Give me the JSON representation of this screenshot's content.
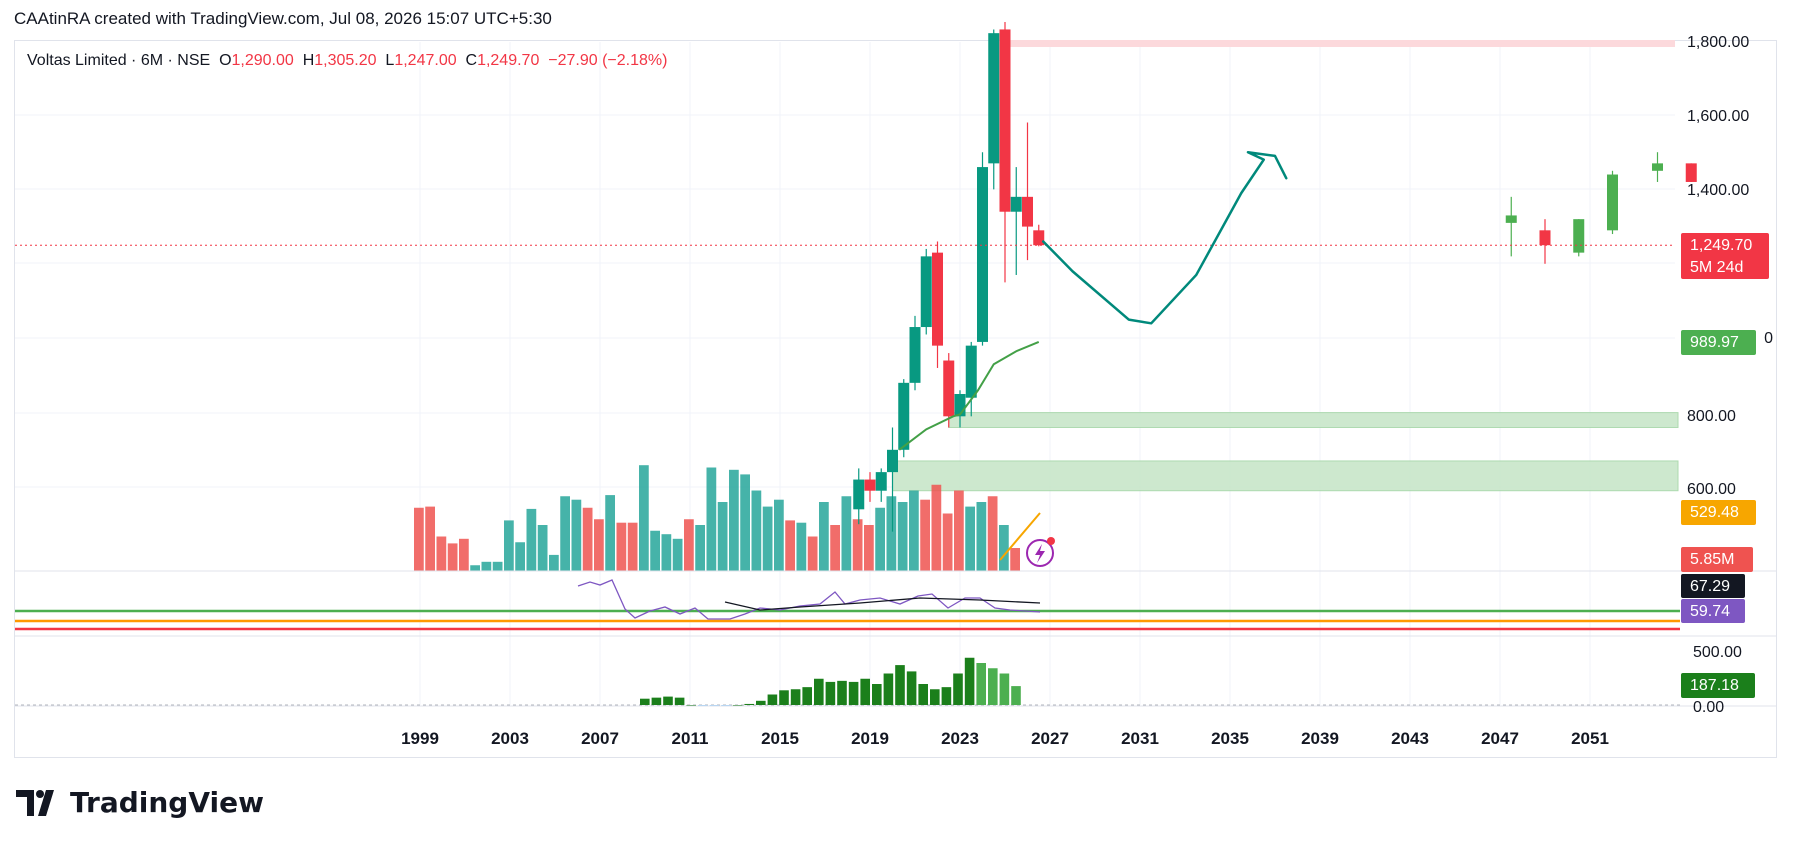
{
  "header": {
    "title": "CAAtinRA created with TradingView.com, Jul 08, 2026 15:07 UTC+5:30"
  },
  "legend": {
    "symbol": "Voltas Limited · 6M · NSE",
    "o_label": "O",
    "o_value": "1,290.00",
    "h_label": "H",
    "h_value": "1,305.20",
    "l_label": "L",
    "l_value": "1,247.00",
    "c_label": "C",
    "c_value": "1,249.70",
    "change": "−27.90 (−2.18%)"
  },
  "brand": {
    "name": "TradingView"
  },
  "colors": {
    "up": "#4caf50",
    "up_dark": "#089981",
    "down": "#f23645",
    "volume_up": "#26a69a",
    "volume_down": "#ef5350",
    "zone": "#c8e6c9",
    "ma": "#43a047",
    "rsi": "#7e57c2",
    "macd": "#1b7f1b",
    "drawing": "#00897b"
  },
  "chart_data": [
    {
      "type": "candlestick",
      "title": "Voltas Limited · 6M · NSE",
      "x_ticks": [
        "1999",
        "2003",
        "2007",
        "2011",
        "2015",
        "2019",
        "2023",
        "2027",
        "2031",
        "2035",
        "2039",
        "2043",
        "2047",
        "2051"
      ],
      "y_ticks": [
        "1,800.00",
        "1,600.00",
        "1,400.00",
        "800.00",
        "600.00"
      ],
      "last_price": {
        "label": "1,249.70",
        "countdown": "5M 24d"
      },
      "ma_value": {
        "label": "989.97"
      },
      "orange_value": {
        "label": "529.48"
      },
      "volume_value": {
        "label": "5.85M"
      },
      "ohlc": [
        {
          "t": 2018.5,
          "o": 540,
          "h": 650,
          "l": 500,
          "c": 620
        },
        {
          "t": 2019.0,
          "o": 620,
          "h": 640,
          "l": 560,
          "c": 590
        },
        {
          "t": 2019.5,
          "o": 590,
          "h": 650,
          "l": 560,
          "c": 640
        },
        {
          "t": 2020.0,
          "o": 640,
          "h": 760,
          "l": 480,
          "c": 700
        },
        {
          "t": 2020.5,
          "o": 700,
          "h": 890,
          "l": 680,
          "c": 880
        },
        {
          "t": 2021.0,
          "o": 880,
          "h": 1060,
          "l": 860,
          "c": 1030
        },
        {
          "t": 2021.5,
          "o": 1030,
          "h": 1240,
          "l": 1010,
          "c": 1220
        },
        {
          "t": 2022.0,
          "o": 1230,
          "h": 1260,
          "l": 920,
          "c": 980
        },
        {
          "t": 2022.5,
          "o": 940,
          "h": 960,
          "l": 760,
          "c": 790
        },
        {
          "t": 2023.0,
          "o": 790,
          "h": 860,
          "l": 760,
          "c": 850
        },
        {
          "t": 2023.5,
          "o": 840,
          "h": 990,
          "l": 790,
          "c": 980
        },
        {
          "t": 2024.0,
          "o": 990,
          "h": 1500,
          "l": 980,
          "c": 1460
        },
        {
          "t": 2024.5,
          "o": 1470,
          "h": 1830,
          "l": 1400,
          "c": 1820
        },
        {
          "t": 2025.0,
          "o": 1830,
          "h": 1850,
          "l": 1150,
          "c": 1340
        },
        {
          "t": 2025.5,
          "o": 1340,
          "h": 1460,
          "l": 1170,
          "c": 1380
        },
        {
          "t": 2026.0,
          "o": 1380,
          "h": 1580,
          "l": 1210,
          "c": 1300
        },
        {
          "t": 2026.5,
          "o": 1290,
          "h": 1305,
          "l": 1247,
          "c": 1250
        },
        {
          "t": 2047.5,
          "o": 1310,
          "h": 1380,
          "l": 1220,
          "c": 1330
        },
        {
          "t": 2049.0,
          "o": 1290,
          "h": 1320,
          "l": 1200,
          "c": 1250
        },
        {
          "t": 2050.5,
          "o": 1230,
          "h": 1320,
          "l": 1220,
          "c": 1320
        },
        {
          "t": 2052.0,
          "o": 1290,
          "h": 1450,
          "l": 1280,
          "c": 1440
        },
        {
          "t": 2054.0,
          "o": 1450,
          "h": 1500,
          "l": 1420,
          "c": 1470
        },
        {
          "t": 2055.5,
          "o": 1470,
          "h": 1470,
          "l": 1420,
          "c": 1420
        }
      ],
      "ma_line": [
        [
          2020.3,
          700
        ],
        [
          2021.5,
          755
        ],
        [
          2022.7,
          790
        ],
        [
          2023.0,
          795
        ],
        [
          2023.8,
          860
        ],
        [
          2024.5,
          930
        ],
        [
          2025.5,
          965
        ],
        [
          2026.5,
          990
        ]
      ],
      "zones": [
        [
          2022.5,
          2056.5,
          760,
          800
        ],
        [
          2020.0,
          2056.5,
          590,
          670
        ]
      ],
      "drawing_path": [
        [
          2026.7,
          1260
        ],
        [
          2028,
          1180
        ],
        [
          2030.5,
          1050
        ],
        [
          2031.5,
          1040
        ],
        [
          2033.5,
          1170
        ],
        [
          2035.5,
          1390
        ],
        [
          2036.5,
          1480
        ],
        [
          2035.8,
          1500
        ],
        [
          2037,
          1490
        ],
        [
          2037.5,
          1430
        ]
      ]
    },
    {
      "type": "bar",
      "title": "Volume",
      "values": [
        55,
        56,
        30,
        24,
        28,
        5,
        8,
        8,
        44,
        25,
        54,
        40,
        14,
        65,
        62,
        55,
        45,
        66,
        42,
        42,
        92,
        35,
        32,
        28,
        45,
        40,
        90,
        60,
        88,
        84,
        70,
        56,
        62,
        44,
        42,
        30,
        60,
        40,
        65,
        45,
        40,
        55,
        65,
        60,
        70,
        62,
        75,
        50,
        70,
        56,
        60,
        65,
        40,
        20
      ],
      "colors": [
        "d",
        "d",
        "d",
        "d",
        "d",
        "u",
        "u",
        "u",
        "u",
        "u",
        "u",
        "u",
        "u",
        "u",
        "u",
        "d",
        "d",
        "u",
        "d",
        "d",
        "u",
        "u",
        "u",
        "u",
        "d",
        "u",
        "u",
        "u",
        "u",
        "u",
        "u",
        "u",
        "u",
        "d",
        "u",
        "d",
        "u",
        "d",
        "u",
        "d",
        "d",
        "u",
        "u",
        "u",
        "u",
        "d",
        "d",
        "d",
        "d",
        "u",
        "u",
        "d",
        "u",
        "d"
      ]
    },
    {
      "type": "line",
      "title": "RSI",
      "value_labels": [
        "67.29",
        "59.74"
      ]
    },
    {
      "type": "bar",
      "title": "MACD histogram",
      "y_ticks": [
        "500.00",
        "0.00"
      ],
      "value_label": "187.18",
      "values": [
        60,
        70,
        80,
        70,
        0,
        -5,
        -10,
        -5,
        0,
        10,
        40,
        100,
        140,
        150,
        170,
        250,
        220,
        230,
        220,
        250,
        200,
        300,
        380,
        320,
        200,
        150,
        170,
        300,
        450,
        400,
        350,
        300,
        180
      ]
    }
  ]
}
